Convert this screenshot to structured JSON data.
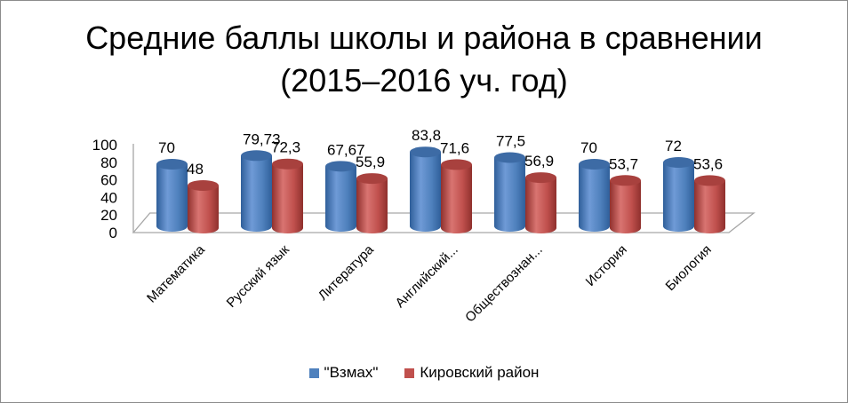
{
  "chart_data": {
    "type": "bar",
    "title": "Средние баллы школы и района в сравнении (2015–2016 уч. год)",
    "title_lines": [
      "Средние баллы школы и района в сравнении",
      "(2015–2016 уч. год)"
    ],
    "categories": [
      "Математика",
      "Русский язык",
      "Литература",
      "Английский...",
      "Обществознан...",
      "История",
      "Биология"
    ],
    "series": [
      {
        "name": "\"Взмах\"",
        "color": "#4F81BD",
        "values": [
          70,
          79.73,
          67.67,
          83.8,
          77.5,
          70,
          72
        ],
        "labels": [
          "70",
          "79,73",
          "67,67",
          "83,8",
          "77,5",
          "70",
          "72"
        ]
      },
      {
        "name": "Кировский район",
        "color": "#C0504D",
        "values": [
          48,
          72.3,
          55.9,
          71.6,
          56.9,
          53.7,
          53.6
        ],
        "labels": [
          "48",
          "72,3",
          "55,9",
          "71,6",
          "56,9",
          "53,7",
          "53,6"
        ]
      }
    ],
    "yticks": [
      "0",
      "20",
      "40",
      "60",
      "80",
      "100"
    ],
    "ylim": [
      0,
      100
    ],
    "xlabel": "",
    "ylabel": "",
    "grid": false,
    "legend_position": "bottom",
    "style": "3d-cylinder"
  }
}
